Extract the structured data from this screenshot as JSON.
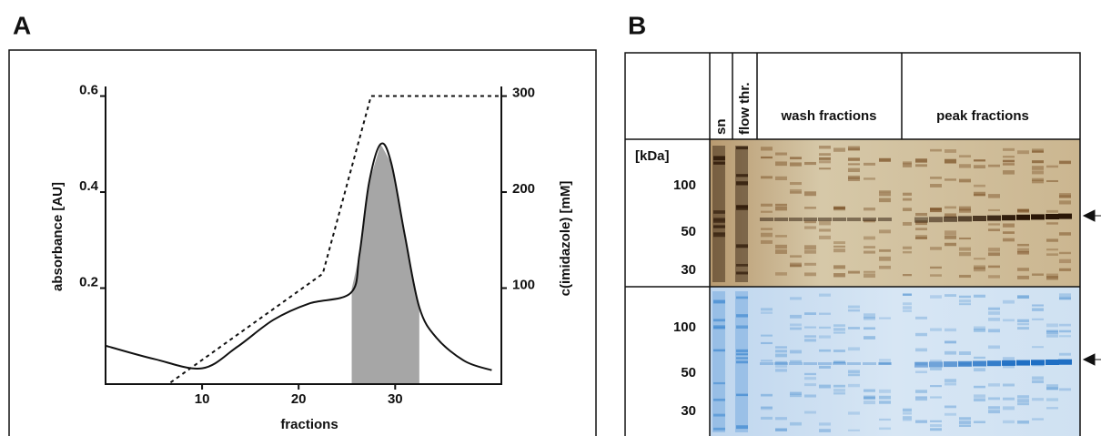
{
  "panel_labels": [
    "A",
    "B"
  ],
  "chart_data": {
    "type": "line",
    "xlabel": "fractions",
    "ylabel": "absorbance  [AU]",
    "y2label": "c(imidazole) [mM]",
    "xlim": [
      0,
      41
    ],
    "xticks": [
      10,
      20,
      30
    ],
    "ylim": [
      0,
      0.62
    ],
    "yticks": [
      0.2,
      0.4,
      0.6
    ],
    "y2lim": [
      0,
      310
    ],
    "y2ticks": [
      100,
      200,
      300
    ],
    "series": [
      {
        "color": "#111111",
        "line_style": "solid",
        "x": [
          0,
          5.1,
          10,
          13.6,
          17.4,
          21.1,
          25.4,
          26.3,
          27.3,
          28.5,
          29.6,
          31,
          32.5,
          34.3,
          37.2,
          40
        ],
        "values": [
          0.08,
          0.052,
          0.033,
          0.077,
          0.134,
          0.168,
          0.19,
          0.27,
          0.42,
          0.5,
          0.46,
          0.31,
          0.16,
          0.096,
          0.048,
          0.029
        ]
      },
      {
        "color": "#111111",
        "line_style": "dashed",
        "axis": "y2",
        "x": [
          0,
          6.5,
          22.5,
          27.5,
          41
        ],
        "values": [
          0,
          0,
          115,
          300,
          300
        ]
      }
    ],
    "highlight": {
      "x": [
        25.5,
        32.5
      ],
      "color": "#a6a6a6"
    }
  },
  "gel": {
    "headers": [
      "sn",
      "flow thr.",
      "wash fractions",
      "peak fractions"
    ],
    "unit": "[kDa]",
    "markers_top": [
      100,
      50,
      30
    ],
    "markers_bottom": [
      100,
      50,
      30
    ]
  }
}
